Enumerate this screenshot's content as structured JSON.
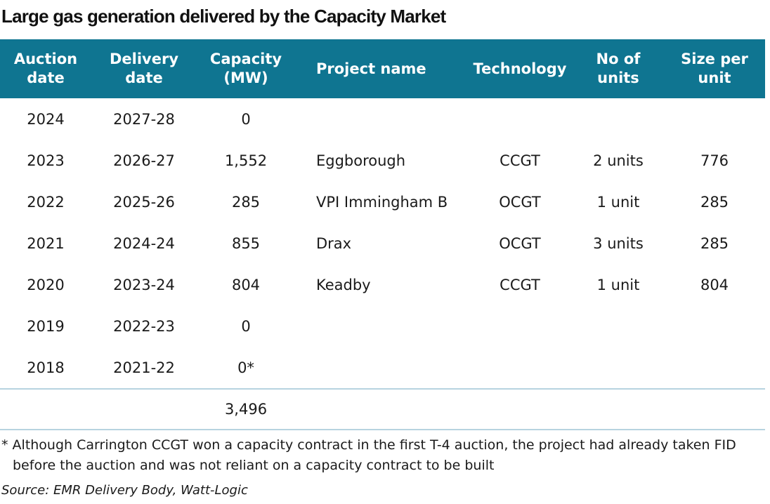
{
  "title": "Large gas generation delivered by the Capacity Market",
  "chart_data": {
    "type": "table",
    "title": "Large gas generation delivered by the Capacity Market",
    "columns": [
      {
        "line1": "Auction",
        "line2": "date"
      },
      {
        "line1": "Delivery",
        "line2": "date"
      },
      {
        "line1": "Capacity",
        "line2": "(MW)"
      },
      {
        "line1": "Project name",
        "line2": ""
      },
      {
        "line1": "Technology",
        "line2": ""
      },
      {
        "line1": "No of",
        "line2": "units"
      },
      {
        "line1": "Size per",
        "line2": "unit"
      }
    ],
    "rows": [
      [
        "2024",
        "2027-28",
        "0",
        "",
        "",
        "",
        ""
      ],
      [
        "2023",
        "2026-27",
        "1,552",
        "Eggborough",
        "CCGT",
        "2 units",
        "776"
      ],
      [
        "2022",
        "2025-26",
        "285",
        "VPI Immingham B",
        "OCGT",
        "1 unit",
        "285"
      ],
      [
        "2021",
        "2024-24",
        "855",
        "Drax",
        "OCGT",
        "3 units",
        "285"
      ],
      [
        "2020",
        "2023-24",
        "804",
        "Keadby",
        "CCGT",
        "1 unit",
        "804"
      ],
      [
        "2019",
        "2022-23",
        "0",
        "",
        "",
        "",
        ""
      ],
      [
        "2018",
        "2021-22",
        "0*",
        "",
        "",
        "",
        ""
      ]
    ],
    "total": "3,496"
  },
  "footnote_line1": "* Although Carrington CCGT won a capacity contract in the first T-4 auction, the project had already taken FID",
  "footnote_line2": "before the auction and was not reliant on a capacity contract to be built",
  "source": "Source: EMR Delivery Body, Watt-Logic",
  "colors": {
    "header_bg": "#0f7591",
    "header_text": "#ffffff",
    "rule": "#b7d3e0"
  }
}
